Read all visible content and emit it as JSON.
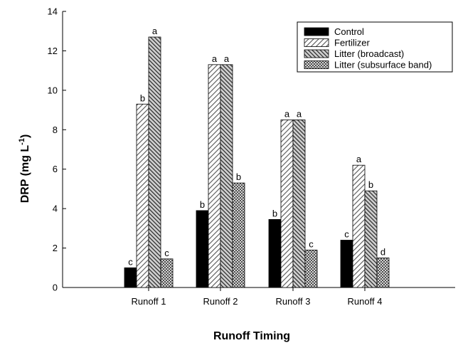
{
  "chart_data": {
    "type": "bar",
    "xlabel": "Runoff Timing",
    "ylabel": "DRP (mg L",
    "ylabel_superscript": "-1",
    "ylabel_suffix": ")",
    "ylim": [
      0,
      14
    ],
    "yticks": [
      "0",
      "2",
      "4",
      "6",
      "8",
      "10",
      "12",
      "14"
    ],
    "categories": [
      "Runoff 1",
      "Runoff 2",
      "Runoff 3",
      "Runoff 4"
    ],
    "legend_position": "top-right",
    "grid": false,
    "series": [
      {
        "name": "Control",
        "pattern": "solid",
        "color": "#000000",
        "values": [
          1.0,
          3.9,
          3.45,
          2.4
        ],
        "labels": [
          "c",
          "b",
          "b",
          "c"
        ]
      },
      {
        "name": "Fertilizer",
        "pattern": "diagonal-light",
        "color": "#b0b0b0",
        "values": [
          9.3,
          11.3,
          8.5,
          6.2
        ],
        "labels": [
          "b",
          "a",
          "a",
          "a"
        ]
      },
      {
        "name": "Litter (broadcast)",
        "pattern": "diagonal-dark",
        "color": "#555555",
        "values": [
          12.7,
          11.3,
          8.5,
          4.9
        ],
        "labels": [
          "a",
          "a",
          "a",
          "b"
        ]
      },
      {
        "name": "Litter (subsurface band)",
        "pattern": "crosshatch",
        "color": "#dddddd",
        "values": [
          1.45,
          5.3,
          1.9,
          1.5
        ],
        "labels": [
          "c",
          "b",
          "c",
          "d"
        ]
      }
    ]
  }
}
